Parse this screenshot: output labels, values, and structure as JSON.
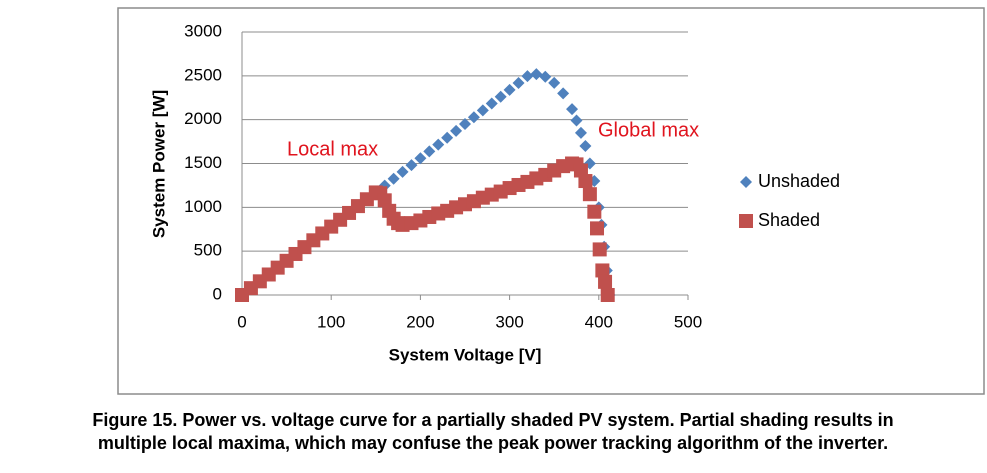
{
  "chart_data": {
    "type": "scatter",
    "xlabel": "System Voltage [V]",
    "ylabel": "System Power [W]",
    "xlim": [
      0,
      500
    ],
    "xticks": [
      0,
      100,
      200,
      300,
      400,
      500
    ],
    "ylim": [
      0,
      3000
    ],
    "yticks": [
      0,
      500,
      1000,
      1500,
      2000,
      2500,
      3000
    ],
    "grid": true,
    "legend": "right",
    "annotations": [
      "Local max",
      "Global max"
    ],
    "caption": [
      "Figure 15. Power vs. voltage curve for a partially shaded PV system.  Partial shading results in",
      "multiple local maxima, which may confuse the peak power tracking algorithm of the inverter."
    ],
    "series": [
      {
        "name": "Unshaded",
        "color": "#4f81bd",
        "marker": "diamond",
        "x": [
          0,
          10,
          20,
          30,
          40,
          50,
          60,
          70,
          80,
          90,
          100,
          110,
          120,
          130,
          140,
          150,
          160,
          170,
          180,
          190,
          200,
          210,
          220,
          230,
          240,
          250,
          260,
          270,
          280,
          290,
          300,
          310,
          320,
          330,
          340,
          350,
          360,
          370,
          375,
          380,
          385,
          390,
          395,
          400,
          403,
          406,
          409,
          412
        ],
        "values": [
          0,
          78,
          156,
          234,
          312,
          390,
          468,
          546,
          624,
          702,
          780,
          858,
          936,
          1014,
          1092,
          1170,
          1248,
          1326,
          1404,
          1482,
          1560,
          1638,
          1716,
          1794,
          1872,
          1950,
          2028,
          2106,
          2184,
          2262,
          2340,
          2418,
          2496,
          2520,
          2490,
          2420,
          2300,
          2120,
          1990,
          1850,
          1700,
          1500,
          1300,
          1000,
          800,
          550,
          280,
          0
        ]
      },
      {
        "name": "Shaded",
        "color": "#c0504d",
        "marker": "square",
        "x": [
          0,
          10,
          20,
          30,
          40,
          50,
          60,
          70,
          80,
          90,
          100,
          110,
          120,
          130,
          140,
          150,
          155,
          160,
          165,
          170,
          175,
          180,
          190,
          200,
          210,
          220,
          230,
          240,
          250,
          260,
          270,
          280,
          290,
          300,
          310,
          320,
          330,
          340,
          350,
          360,
          370,
          375,
          380,
          385,
          390,
          395,
          398,
          401,
          404,
          407,
          410
        ],
        "values": [
          0,
          78,
          156,
          234,
          312,
          390,
          468,
          546,
          624,
          702,
          780,
          858,
          936,
          1014,
          1092,
          1170,
          1160,
          1080,
          960,
          870,
          820,
          800,
          820,
          850,
          890,
          930,
          960,
          1000,
          1035,
          1070,
          1110,
          1145,
          1180,
          1220,
          1255,
          1290,
          1330,
          1370,
          1420,
          1470,
          1500,
          1490,
          1420,
          1300,
          1150,
          950,
          760,
          520,
          280,
          150,
          0
        ]
      }
    ]
  }
}
